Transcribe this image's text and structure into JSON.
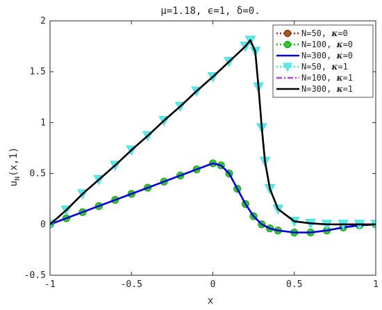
{
  "chart_data": {
    "type": "line",
    "title": "μ=1.18, ϵ=1, δ=0.",
    "xlabel": "x",
    "ylabel": "u_N(x,1)",
    "ylabel_main": "u",
    "ylabel_sub": "N",
    "ylabel_rest": "(x,1)",
    "xlim": [
      -1,
      1
    ],
    "ylim": [
      -0.5,
      2
    ],
    "xticks": [
      -1,
      -0.5,
      0,
      0.5,
      1
    ],
    "xtick_labels": [
      "-1",
      "-0.5",
      "0",
      "0.5",
      "1"
    ],
    "yticks": [
      -0.5,
      0,
      0.5,
      1,
      1.5,
      2
    ],
    "ytick_labels": [
      "-0.5",
      "0",
      "0.5",
      "1",
      "1.5",
      "2"
    ],
    "grid": false,
    "legend_position": "top-right",
    "series": [
      {
        "name": "N=50, κ=0",
        "legend_main": "N=50, ",
        "legend_kappa": "κ",
        "legend_val": "=0",
        "color": "#b22222",
        "line_style": "dotted",
        "marker": "circle",
        "marker_color": "#8b6914",
        "x": [
          -1.0,
          -0.9,
          -0.8,
          -0.7,
          -0.6,
          -0.5,
          -0.4,
          -0.3,
          -0.2,
          -0.1,
          0.0,
          0.05,
          0.1,
          0.15,
          0.2,
          0.25,
          0.3,
          0.35,
          0.4,
          0.5,
          0.6,
          0.7,
          0.8,
          0.9,
          1.0
        ],
        "y": [
          0.0,
          0.06,
          0.12,
          0.18,
          0.24,
          0.3,
          0.36,
          0.42,
          0.48,
          0.54,
          0.6,
          0.58,
          0.5,
          0.35,
          0.2,
          0.08,
          0.0,
          -0.04,
          -0.06,
          -0.08,
          -0.08,
          -0.06,
          -0.03,
          -0.01,
          0.0
        ]
      },
      {
        "name": "N=100, κ=0",
        "legend_main": "N=100, ",
        "legend_kappa": "κ",
        "legend_val": "=0",
        "color": "#1fbf1f",
        "line_style": "dotted",
        "marker": "filled-circle",
        "marker_color": "#2ecc2e",
        "x": [
          -1.0,
          -0.9,
          -0.8,
          -0.7,
          -0.6,
          -0.5,
          -0.4,
          -0.3,
          -0.2,
          -0.1,
          0.0,
          0.05,
          0.1,
          0.15,
          0.2,
          0.25,
          0.3,
          0.35,
          0.4,
          0.5,
          0.6,
          0.7,
          0.8,
          0.9,
          1.0
        ],
        "y": [
          0.0,
          0.06,
          0.12,
          0.18,
          0.24,
          0.3,
          0.36,
          0.42,
          0.48,
          0.54,
          0.6,
          0.58,
          0.5,
          0.35,
          0.2,
          0.08,
          0.0,
          -0.04,
          -0.06,
          -0.08,
          -0.08,
          -0.06,
          -0.03,
          -0.01,
          0.0
        ]
      },
      {
        "name": "N=300, κ=0",
        "legend_main": "N=300, ",
        "legend_kappa": "κ",
        "legend_val": "=0",
        "color": "#0000e0",
        "line_style": "solid",
        "marker": "none",
        "x": [
          -1.0,
          -0.9,
          -0.8,
          -0.7,
          -0.6,
          -0.5,
          -0.4,
          -0.3,
          -0.2,
          -0.1,
          0.0,
          0.05,
          0.1,
          0.15,
          0.2,
          0.25,
          0.3,
          0.35,
          0.4,
          0.5,
          0.6,
          0.7,
          0.8,
          0.9,
          1.0
        ],
        "y": [
          0.0,
          0.06,
          0.12,
          0.18,
          0.24,
          0.3,
          0.36,
          0.42,
          0.48,
          0.54,
          0.6,
          0.58,
          0.5,
          0.35,
          0.2,
          0.08,
          0.0,
          -0.04,
          -0.06,
          -0.08,
          -0.08,
          -0.06,
          -0.03,
          -0.01,
          0.0
        ]
      },
      {
        "name": "N=50, κ=1",
        "legend_main": "N=50, ",
        "legend_kappa": "κ",
        "legend_val": "=1",
        "color": "#40e0e0",
        "line_style": "dotted",
        "marker": "triangle-down",
        "marker_color": "#5ce8e8",
        "x": [
          -1.0,
          -0.9,
          -0.8,
          -0.7,
          -0.6,
          -0.5,
          -0.4,
          -0.3,
          -0.2,
          -0.1,
          0.0,
          0.1,
          0.2,
          0.23,
          0.26,
          0.28,
          0.3,
          0.32,
          0.35,
          0.4,
          0.5,
          0.6,
          0.7,
          0.8,
          0.9,
          1.0
        ],
        "y": [
          0.0,
          0.14,
          0.3,
          0.44,
          0.58,
          0.73,
          0.87,
          1.02,
          1.16,
          1.31,
          1.45,
          1.6,
          1.75,
          1.81,
          1.7,
          1.35,
          0.95,
          0.62,
          0.35,
          0.15,
          0.03,
          0.01,
          0.0,
          0.0,
          0.0,
          0.0
        ]
      },
      {
        "name": "N=100, κ=1",
        "legend_main": "N=100, ",
        "legend_kappa": "κ",
        "legend_val": "=1",
        "color": "#b040d8",
        "line_style": "dashdot",
        "marker": "none",
        "x": [
          -1.0,
          -0.9,
          -0.8,
          -0.7,
          -0.6,
          -0.5,
          -0.4,
          -0.3,
          -0.2,
          -0.1,
          0.0,
          0.1,
          0.2,
          0.23,
          0.26,
          0.28,
          0.3,
          0.32,
          0.35,
          0.4,
          0.5,
          0.6,
          0.7,
          0.8,
          0.9,
          1.0
        ],
        "y": [
          0.0,
          0.14,
          0.3,
          0.44,
          0.58,
          0.73,
          0.87,
          1.02,
          1.16,
          1.31,
          1.45,
          1.6,
          1.75,
          1.81,
          1.7,
          1.35,
          0.95,
          0.62,
          0.35,
          0.15,
          0.03,
          0.01,
          0.0,
          0.0,
          0.0,
          0.0
        ]
      },
      {
        "name": "N=300, κ=1",
        "legend_main": "N=300, ",
        "legend_kappa": "κ",
        "legend_val": "=1",
        "color": "#000000",
        "line_style": "solid",
        "marker": "none",
        "x": [
          -1.0,
          -0.9,
          -0.8,
          -0.7,
          -0.6,
          -0.5,
          -0.4,
          -0.3,
          -0.2,
          -0.1,
          0.0,
          0.1,
          0.2,
          0.23,
          0.26,
          0.28,
          0.3,
          0.32,
          0.35,
          0.4,
          0.5,
          0.6,
          0.7,
          0.8,
          0.9,
          1.0
        ],
        "y": [
          0.0,
          0.14,
          0.3,
          0.44,
          0.58,
          0.73,
          0.87,
          1.02,
          1.16,
          1.31,
          1.45,
          1.6,
          1.75,
          1.81,
          1.7,
          1.35,
          0.95,
          0.62,
          0.35,
          0.15,
          0.03,
          0.01,
          0.0,
          0.0,
          0.0,
          0.0
        ]
      }
    ]
  }
}
